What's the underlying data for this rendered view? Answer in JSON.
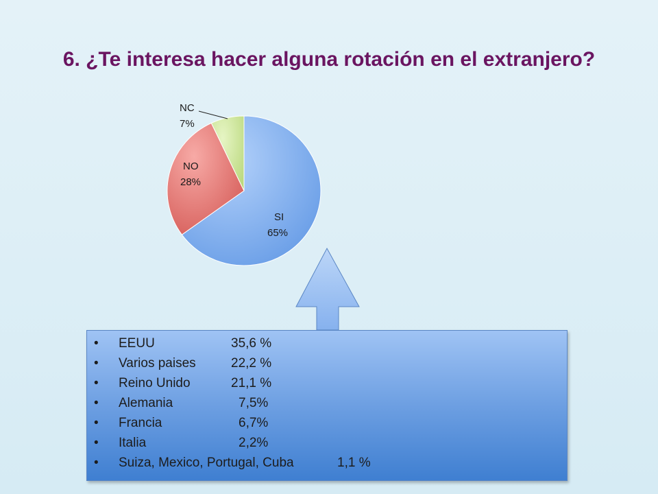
{
  "title": "6. ¿Te interesa hacer alguna rotación en el extranjero?",
  "chart_data": {
    "type": "pie",
    "slices": [
      {
        "label": "SI",
        "value": 65,
        "display": "65%",
        "color": "#7aaef0"
      },
      {
        "label": "NO",
        "value": 28,
        "display": "28%",
        "color": "#e06d6a"
      },
      {
        "label": "NC",
        "value": 7,
        "display": "7%",
        "color": "#c8e48c"
      }
    ]
  },
  "countries": [
    {
      "bullet": "•",
      "name": "EEUU",
      "pct": "35,6 %"
    },
    {
      "bullet": "•",
      "name": "Varios paises",
      "pct": "22,2 %"
    },
    {
      "bullet": "•",
      "name": "Reino Unido",
      "pct": "21,1 %"
    },
    {
      "bullet": "•",
      "name": "Alemania",
      "pct": "7,5%"
    },
    {
      "bullet": "•",
      "name": "Francia",
      "pct": "6,7%"
    },
    {
      "bullet": "•",
      "name": "Italia",
      "pct": "2,2%"
    },
    {
      "bullet": "•",
      "name": "Suiza, Mexico, Portugal, Cuba",
      "pct": "1,1 %"
    }
  ]
}
